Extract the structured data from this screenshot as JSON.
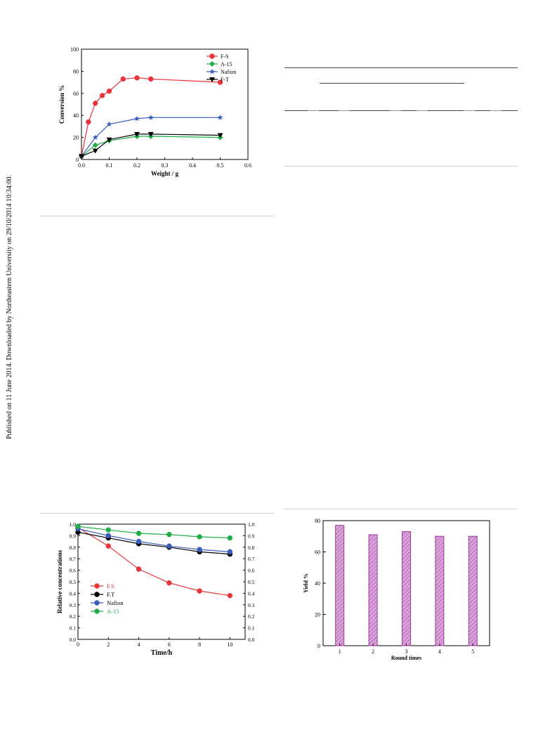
{
  "side_note": "Published on 11 June 2014. Downloaded by Northeastern University on 29/10/2014 10:34:00.",
  "chart_data": [
    {
      "type": "line",
      "xlabel": "Weight / g",
      "ylabel": "Conversion %",
      "xlim": [
        0.0,
        0.6
      ],
      "ylim": [
        0,
        100
      ],
      "xticks": [
        "0.0",
        "0.1",
        "0.2",
        "0.3",
        "0.4",
        "0.5",
        "0.6"
      ],
      "yticks": [
        "0",
        "20",
        "40",
        "60",
        "80",
        "100"
      ],
      "legend_position": "top-right",
      "series": [
        {
          "name": "F-S",
          "color": "#e8353a",
          "marker": "circle",
          "x": [
            0.0,
            0.025,
            0.05,
            0.075,
            0.1,
            0.15,
            0.2,
            0.25,
            0.5
          ],
          "y": [
            3,
            34,
            51,
            58,
            62,
            73,
            74,
            73,
            70
          ]
        },
        {
          "name": "A-15",
          "color": "#1fae48",
          "marker": "diamond",
          "x": [
            0.0,
            0.05,
            0.1,
            0.2,
            0.25,
            0.5
          ],
          "y": [
            3,
            13,
            17,
            21,
            21,
            20
          ]
        },
        {
          "name": "Nafion",
          "color": "#3a5bbf",
          "marker": "star",
          "x": [
            0.0,
            0.05,
            0.1,
            0.2,
            0.25,
            0.5
          ],
          "y": [
            3,
            20,
            32,
            37,
            38,
            38
          ]
        },
        {
          "name": "F-T",
          "color": "#000000",
          "marker": "triangle-down",
          "x": [
            0.0,
            0.05,
            0.1,
            0.2,
            0.25,
            0.5
          ],
          "y": [
            3,
            8,
            18,
            23,
            23,
            22
          ]
        }
      ]
    },
    {
      "type": "line",
      "xlabel": "Time/h",
      "ylabel": "Relative concentrations",
      "xlim": [
        0,
        11
      ],
      "ylim": [
        0.0,
        1.0
      ],
      "xticks": [
        "0",
        "2",
        "4",
        "6",
        "8",
        "10"
      ],
      "yticks": [
        "0.0",
        "0.1",
        "0.2",
        "0.3",
        "0.4",
        "0.5",
        "0.6",
        "0.7",
        "0.8",
        "0.9",
        "1.0"
      ],
      "legend_position": "bottom-left",
      "series": [
        {
          "name": "F.S",
          "color": "#e8353a",
          "marker": "circle",
          "x": [
            0,
            2,
            4,
            6,
            8,
            10
          ],
          "y": [
            0.97,
            0.81,
            0.61,
            0.49,
            0.42,
            0.38
          ]
        },
        {
          "name": "F.T",
          "color": "#000000",
          "marker": "circle",
          "x": [
            0,
            2,
            4,
            6,
            8,
            10
          ],
          "y": [
            0.93,
            0.88,
            0.83,
            0.8,
            0.76,
            0.74
          ]
        },
        {
          "name": "Nafion",
          "color": "#3a5bbf",
          "marker": "circle",
          "x": [
            0,
            2,
            4,
            6,
            8,
            10
          ],
          "y": [
            0.96,
            0.9,
            0.85,
            0.81,
            0.78,
            0.76
          ]
        },
        {
          "name": "A-15",
          "color": "#1fae48",
          "marker": "circle",
          "x": [
            0,
            2,
            4,
            6,
            8,
            10
          ],
          "y": [
            0.98,
            0.95,
            0.92,
            0.91,
            0.89,
            0.88
          ]
        }
      ]
    },
    {
      "type": "bar",
      "xlabel": "Round times",
      "ylabel": "Yield %",
      "categories": [
        "1",
        "2",
        "3",
        "4",
        "5"
      ],
      "values": [
        77,
        71,
        73,
        70,
        70
      ],
      "ylim": [
        0,
        80
      ],
      "yticks": [
        "0",
        "20",
        "40",
        "60",
        "80"
      ],
      "bar_color": "#d9a3d9",
      "bar_edge": "#9b3b9b"
    }
  ]
}
